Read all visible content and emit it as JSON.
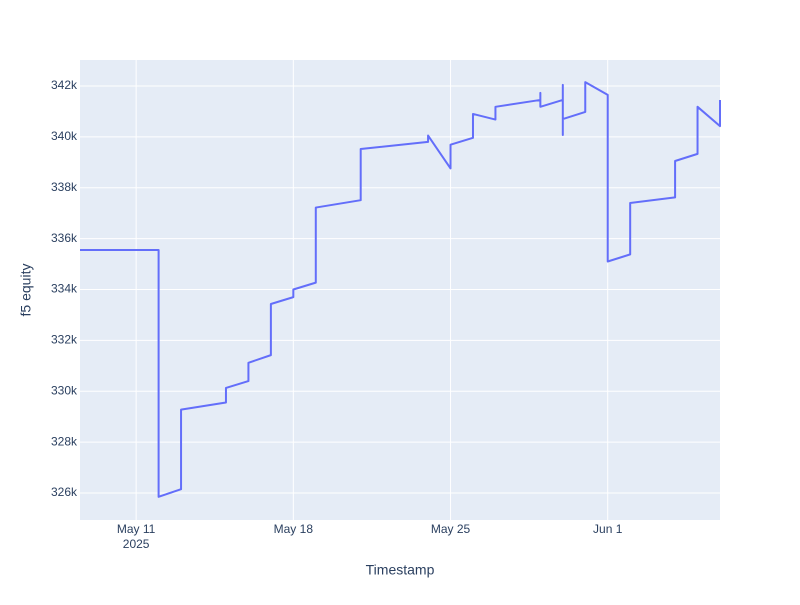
{
  "chart_data": {
    "type": "line",
    "x_label": "Timestamp",
    "y_label": "f5 equity",
    "color": "#636efa",
    "grid": true,
    "x": [
      "2025-05-08T12:00",
      "2025-05-12T00:00",
      "2025-05-12T00:00",
      "2025-05-13T00:00",
      "2025-05-13T00:00",
      "2025-05-15T00:00",
      "2025-05-15T00:00",
      "2025-05-16T00:00",
      "2025-05-16T00:00",
      "2025-05-17T00:00",
      "2025-05-17T00:00",
      "2025-05-18T00:00",
      "2025-05-18T00:00",
      "2025-05-19T00:00",
      "2025-05-19T00:00",
      "2025-05-21T00:00",
      "2025-05-21T00:00",
      "2025-05-24T00:00",
      "2025-05-24T00:00",
      "2025-05-25T00:00",
      "2025-05-25T00:00",
      "2025-05-26T00:00",
      "2025-05-26T00:00",
      "2025-05-27T00:00",
      "2025-05-27T00:00",
      "2025-05-29T00:00",
      "2025-05-29T00:00",
      "2025-05-29T00:00",
      "2025-05-30T00:00",
      "2025-05-30T00:00",
      "2025-05-30T00:00",
      "2025-05-30T00:00",
      "2025-05-31T00:00",
      "2025-05-31T00:00",
      "2025-06-01T00:00",
      "2025-06-01T00:00",
      "2025-06-02T00:00",
      "2025-06-02T00:00",
      "2025-06-04T00:00",
      "2025-06-04T00:00",
      "2025-06-05T00:00",
      "2025-06-05T00:00",
      "2025-06-06T00:00",
      "2025-06-06T00:00"
    ],
    "values": [
      335550,
      335550,
      325850,
      326150,
      329280,
      329560,
      330130,
      330400,
      331120,
      331420,
      333430,
      333700,
      334000,
      334270,
      337220,
      337510,
      339520,
      339800,
      340050,
      338760,
      339690,
      339960,
      340900,
      340680,
      341180,
      341450,
      341730,
      341180,
      341450,
      342040,
      340070,
      340700,
      340980,
      342150,
      341650,
      335100,
      335380,
      337400,
      337620,
      339050,
      339330,
      341180,
      340420,
      341450
    ],
    "xlim": [
      "2025-05-08T12:00",
      "2025-06-06T00:00"
    ],
    "xticks": [
      {
        "value": "2025-05-11T00:00",
        "label": "May 11"
      },
      {
        "value": "2025-05-18T00:00",
        "label": "May 18"
      },
      {
        "value": "2025-05-25T00:00",
        "label": "May 25"
      },
      {
        "value": "2025-06-01T00:00",
        "label": "Jun 1"
      }
    ],
    "x_tick_year": "2025",
    "ylim": [
      324940,
      343020
    ],
    "yticks": [
      {
        "value": 326000,
        "label": "326k"
      },
      {
        "value": 328000,
        "label": "328k"
      },
      {
        "value": 330000,
        "label": "330k"
      },
      {
        "value": 332000,
        "label": "332k"
      },
      {
        "value": 334000,
        "label": "334k"
      },
      {
        "value": 336000,
        "label": "336k"
      },
      {
        "value": 338000,
        "label": "338k"
      },
      {
        "value": 340000,
        "label": "340k"
      },
      {
        "value": 342000,
        "label": "342k"
      }
    ]
  }
}
